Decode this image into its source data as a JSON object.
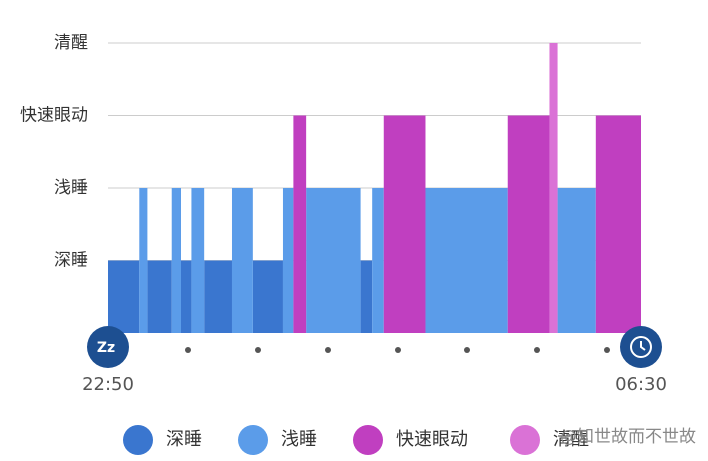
{
  "chart_data": {
    "type": "sleep-stage",
    "xlim": [
      0,
      460
    ],
    "xticks": [
      {
        "value": 0,
        "label": "22:50"
      },
      {
        "value": 460,
        "label": "06:30"
      }
    ],
    "ylim": [
      0,
      4
    ],
    "yticks": [
      {
        "value": 1,
        "label": "深睡"
      },
      {
        "value": 2,
        "label": "浅睡"
      },
      {
        "value": 3,
        "label": "快速眼动"
      },
      {
        "value": 4,
        "label": "清醒"
      }
    ],
    "grid": true,
    "series": [
      {
        "name": "深睡",
        "color": "#3a76cf",
        "level": 1,
        "segments": [
          [
            0,
            27
          ],
          [
            34,
            55
          ],
          [
            63,
            72
          ],
          [
            83,
            107
          ],
          [
            125,
            151
          ],
          [
            218,
            228
          ]
        ]
      },
      {
        "name": "浅睡",
        "color": "#5b9ce9",
        "level": 2,
        "segments": [
          [
            27,
            34
          ],
          [
            55,
            63
          ],
          [
            72,
            83
          ],
          [
            107,
            125
          ],
          [
            151,
            160
          ],
          [
            171,
            218
          ],
          [
            228,
            238
          ],
          [
            274,
            345
          ],
          [
            388,
            421
          ]
        ]
      },
      {
        "name": "快速眼动",
        "color": "#c03fc0",
        "level": 3,
        "segments": [
          [
            160,
            171
          ],
          [
            238,
            274
          ],
          [
            345,
            381
          ],
          [
            421,
            460
          ]
        ]
      },
      {
        "name": "清醒",
        "color": "#da72d6",
        "level": 4,
        "segments": [
          [
            381,
            388
          ]
        ]
      }
    ],
    "watermark": "@知世故而不世故"
  }
}
